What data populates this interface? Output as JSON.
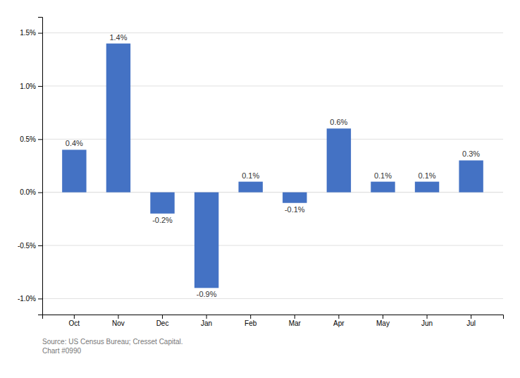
{
  "chart_data": {
    "type": "bar",
    "categories": [
      "Oct",
      "Nov",
      "Dec",
      "Jan",
      "Feb",
      "Mar",
      "Apr",
      "May",
      "Jun",
      "Jul"
    ],
    "values": [
      0.4,
      1.4,
      -0.2,
      -0.9,
      0.1,
      -0.1,
      0.6,
      0.1,
      0.1,
      0.3
    ],
    "value_labels": [
      "0.4%",
      "1.4%",
      "-0.2%",
      "-0.9%",
      "0.1%",
      "-0.1%",
      "0.6%",
      "0.1%",
      "0.1%",
      "0.3%"
    ],
    "data_labels": true,
    "color": "#4472C4",
    "ylim": [
      -1.15,
      1.65
    ],
    "yticks": [
      {
        "value": -1.0,
        "label": "-1.0%"
      },
      {
        "value": -0.5,
        "label": "-0.5%"
      },
      {
        "value": 0.0,
        "label": "0.0%"
      },
      {
        "value": 0.5,
        "label": "0.5%"
      },
      {
        "value": 1.0,
        "label": "1.0%"
      },
      {
        "value": 1.5,
        "label": "1.5%"
      }
    ],
    "grid": true,
    "annotations": [
      "Source: US Census Bureau; Cresset Capital.\nChart #0990"
    ]
  }
}
